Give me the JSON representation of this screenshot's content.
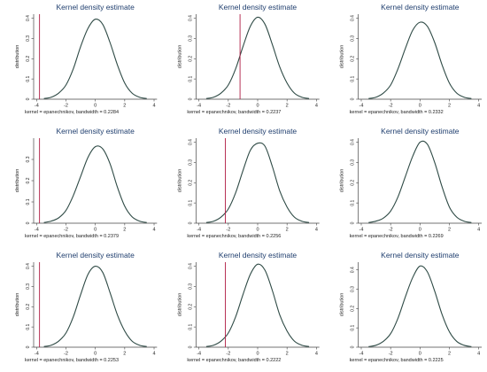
{
  "panels": [
    {
      "title": "Kernel density estimate",
      "ylabel": "distribution",
      "note": "kernel = epanechnikov, bandwidth = 0.2284",
      "x": [
        -3.5,
        -3,
        -2.5,
        -2,
        -1.5,
        -1,
        -0.5,
        0,
        0.5,
        1,
        1.5,
        2,
        2.5,
        3,
        3.5
      ],
      "y": [
        0.003,
        0.01,
        0.03,
        0.07,
        0.15,
        0.26,
        0.35,
        0.395,
        0.37,
        0.28,
        0.17,
        0.08,
        0.03,
        0.01,
        0.003
      ],
      "vline": -3.8,
      "xticks": [
        -4,
        -2,
        0,
        2,
        4
      ],
      "yticks": [
        0,
        0.1,
        0.2,
        0.3,
        0.4
      ],
      "xlim": [
        -4.2,
        4.2
      ],
      "ylim": [
        0,
        0.42
      ]
    },
    {
      "title": "Kernel density estimate",
      "ylabel": "distribution",
      "note": "kernel = epanechnikov, bandwidth = 0.2237",
      "x": [
        -3.5,
        -3,
        -2.5,
        -2,
        -1.5,
        -1,
        -0.5,
        0,
        0.5,
        1,
        1.5,
        2,
        2.5,
        3,
        3.5
      ],
      "y": [
        0.003,
        0.01,
        0.03,
        0.07,
        0.15,
        0.26,
        0.36,
        0.405,
        0.37,
        0.27,
        0.16,
        0.08,
        0.03,
        0.01,
        0.003
      ],
      "vline": -1.2,
      "xticks": [
        -4,
        -2,
        0,
        2,
        4
      ],
      "yticks": [
        0,
        0.1,
        0.2,
        0.3,
        0.4
      ],
      "xlim": [
        -4.2,
        4.2
      ],
      "ylim": [
        0,
        0.42
      ]
    },
    {
      "title": "Kernel density estimate",
      "ylabel": "distribution",
      "note": "kernel = epanechnikov, bandwidth = 0.2332",
      "x": [
        -3.5,
        -3,
        -2.5,
        -2,
        -1.5,
        -1,
        -0.5,
        0,
        0.5,
        1,
        1.5,
        2,
        2.5,
        3,
        3.5
      ],
      "y": [
        0.003,
        0.01,
        0.03,
        0.07,
        0.15,
        0.25,
        0.34,
        0.38,
        0.36,
        0.28,
        0.17,
        0.08,
        0.03,
        0.01,
        0.003
      ],
      "vline": null,
      "xticks": [
        -4,
        -2,
        0,
        2,
        4
      ],
      "yticks": [
        0,
        0.1,
        0.2,
        0.3,
        0.4
      ],
      "xlim": [
        -4.2,
        4.2
      ],
      "ylim": [
        0,
        0.42
      ]
    },
    {
      "title": "Kernel density estimate",
      "ylabel": "distribution",
      "note": "kernel = epanechnikov, bandwidth = 0.2379",
      "x": [
        -3.5,
        -3,
        -2.5,
        -2,
        -1.5,
        -1,
        -0.5,
        0,
        0.5,
        1,
        1.5,
        2,
        2.5,
        3,
        3.5
      ],
      "y": [
        0.003,
        0.01,
        0.025,
        0.06,
        0.13,
        0.22,
        0.31,
        0.36,
        0.35,
        0.28,
        0.17,
        0.08,
        0.03,
        0.01,
        0.003
      ],
      "vline": -3.8,
      "xticks": [
        -4,
        -2,
        0,
        2,
        4
      ],
      "yticks": [
        0,
        0.1,
        0.2,
        0.3
      ],
      "xlim": [
        -4.2,
        4.2
      ],
      "ylim": [
        0,
        0.4
      ]
    },
    {
      "title": "Kernel density estimate",
      "ylabel": "distribution",
      "note": "kernel = epanechnikov, bandwidth = 0.2256",
      "x": [
        -3.5,
        -3,
        -2.5,
        -2,
        -1.5,
        -1,
        -0.5,
        0,
        0.5,
        1,
        1.5,
        2,
        2.5,
        3,
        3.5
      ],
      "y": [
        0.003,
        0.01,
        0.03,
        0.07,
        0.15,
        0.26,
        0.36,
        0.395,
        0.38,
        0.28,
        0.16,
        0.08,
        0.03,
        0.01,
        0.003
      ],
      "vline": -2.2,
      "xticks": [
        -4,
        -2,
        0,
        2,
        4
      ],
      "yticks": [
        0,
        0.1,
        0.2,
        0.3,
        0.4
      ],
      "xlim": [
        -4.2,
        4.2
      ],
      "ylim": [
        0,
        0.42
      ]
    },
    {
      "title": "Kernel density estimate",
      "ylabel": "distribution",
      "note": "kernel = epanechnikov, bandwidth = 0.2269",
      "x": [
        -3.5,
        -3,
        -2.5,
        -2,
        -1.5,
        -1,
        -0.5,
        0,
        0.5,
        1,
        1.5,
        2,
        2.5,
        3,
        3.5
      ],
      "y": [
        0.003,
        0.01,
        0.025,
        0.06,
        0.13,
        0.23,
        0.33,
        0.4,
        0.39,
        0.3,
        0.18,
        0.08,
        0.03,
        0.01,
        0.003
      ],
      "vline": null,
      "xticks": [
        -4,
        -2,
        0,
        2,
        4
      ],
      "yticks": [
        0,
        0.1,
        0.2,
        0.3,
        0.4
      ],
      "xlim": [
        -4.2,
        4.2
      ],
      "ylim": [
        0,
        0.42
      ]
    },
    {
      "title": "Kernel density estimate",
      "ylabel": "distribution",
      "note": "kernel = epanechnikov, bandwidth = 0.2253",
      "x": [
        -3.5,
        -3,
        -2.5,
        -2,
        -1.5,
        -1,
        -0.5,
        0,
        0.5,
        1,
        1.5,
        2,
        2.5,
        3,
        3.5
      ],
      "y": [
        0.003,
        0.01,
        0.03,
        0.07,
        0.15,
        0.26,
        0.36,
        0.4,
        0.37,
        0.27,
        0.16,
        0.08,
        0.03,
        0.01,
        0.003
      ],
      "vline": -3.8,
      "xticks": [
        -4,
        -2,
        0,
        2,
        4
      ],
      "yticks": [
        0,
        0.1,
        0.2,
        0.3,
        0.4
      ],
      "xlim": [
        -4.2,
        4.2
      ],
      "ylim": [
        0,
        0.42
      ]
    },
    {
      "title": "Kernel density estimate",
      "ylabel": "distribution",
      "note": "kernel = epanechnikov, bandwidth = 0.2222",
      "x": [
        -3.5,
        -3,
        -2.5,
        -2,
        -1.5,
        -1,
        -0.5,
        0,
        0.5,
        1,
        1.5,
        2,
        2.5,
        3,
        3.5
      ],
      "y": [
        0.003,
        0.01,
        0.03,
        0.07,
        0.15,
        0.26,
        0.36,
        0.41,
        0.38,
        0.28,
        0.16,
        0.08,
        0.03,
        0.01,
        0.003
      ],
      "vline": -2.2,
      "xticks": [
        -4,
        -2,
        0,
        2,
        4
      ],
      "yticks": [
        0,
        0.1,
        0.2,
        0.3,
        0.4
      ],
      "xlim": [
        -4.2,
        4.2
      ],
      "ylim": [
        0,
        0.42
      ]
    },
    {
      "title": "Kernel density estimate",
      "ylabel": "distribution",
      "note": "kernel = epanechnikov, bandwidth = 0.2225",
      "x": [
        -3.5,
        -3,
        -2.5,
        -2,
        -1.5,
        -1,
        -0.5,
        0,
        0.5,
        1,
        1.5,
        2,
        2.5,
        3,
        3.5
      ],
      "y": [
        0.003,
        0.01,
        0.03,
        0.07,
        0.15,
        0.26,
        0.36,
        0.42,
        0.39,
        0.29,
        0.17,
        0.08,
        0.03,
        0.01,
        0.003
      ],
      "vline": null,
      "xticks": [
        -4,
        -2,
        0,
        2,
        4
      ],
      "yticks": [
        0,
        0.1,
        0.2,
        0.3,
        0.4
      ],
      "xlim": [
        -4.2,
        4.2
      ],
      "ylim": [
        0,
        0.44
      ]
    }
  ],
  "colors": {
    "curve": "#2e4a45",
    "vline": "#b01c44",
    "axis": "#444444",
    "title": "#1f3e6e",
    "text": "#222222"
  },
  "chart_data": [
    {
      "type": "line",
      "title": "Kernel density estimate",
      "ylabel": "distribution",
      "note": "kernel = epanechnikov, bandwidth = 0.2284",
      "reference_line_x": -3.8,
      "xlim": [
        -4.2,
        4.2
      ],
      "ylim": [
        0,
        0.42
      ]
    },
    {
      "type": "line",
      "title": "Kernel density estimate",
      "ylabel": "distribution",
      "note": "kernel = epanechnikov, bandwidth = 0.2237",
      "reference_line_x": -1.2,
      "xlim": [
        -4.2,
        4.2
      ],
      "ylim": [
        0,
        0.42
      ]
    },
    {
      "type": "line",
      "title": "Kernel density estimate",
      "ylabel": "distribution",
      "note": "kernel = epanechnikov, bandwidth = 0.2332",
      "reference_line_x": null,
      "xlim": [
        -4.2,
        4.2
      ],
      "ylim": [
        0,
        0.42
      ]
    },
    {
      "type": "line",
      "title": "Kernel density estimate",
      "ylabel": "distribution",
      "note": "kernel = epanechnikov, bandwidth = 0.2379",
      "reference_line_x": -3.8,
      "xlim": [
        -4.2,
        4.2
      ],
      "ylim": [
        0,
        0.4
      ]
    },
    {
      "type": "line",
      "title": "Kernel density estimate",
      "ylabel": "distribution",
      "note": "kernel = epanechnikov, bandwidth = 0.2256",
      "reference_line_x": -2.2,
      "xlim": [
        -4.2,
        4.2
      ],
      "ylim": [
        0,
        0.42
      ]
    },
    {
      "type": "line",
      "title": "Kernel density estimate",
      "ylabel": "distribution",
      "note": "kernel = epanechnikov, bandwidth = 0.2269",
      "reference_line_x": null,
      "xlim": [
        -4.2,
        4.2
      ],
      "ylim": [
        0,
        0.42
      ]
    },
    {
      "type": "line",
      "title": "Kernel density estimate",
      "ylabel": "distribution",
      "note": "kernel = epanechnikov, bandwidth = 0.2253",
      "reference_line_x": -3.8,
      "xlim": [
        -4.2,
        4.2
      ],
      "ylim": [
        0,
        0.42
      ]
    },
    {
      "type": "line",
      "title": "Kernel density estimate",
      "ylabel": "distribution",
      "note": "kernel = epanechnikov, bandwidth = 0.2222",
      "reference_line_x": -2.2,
      "xlim": [
        -4.2,
        4.2
      ],
      "ylim": [
        0,
        0.42
      ]
    },
    {
      "type": "line",
      "title": "Kernel density estimate",
      "ylabel": "distribution",
      "note": "kernel = epanechnikov, bandwidth = 0.2225",
      "reference_line_x": null,
      "xlim": [
        -4.2,
        4.2
      ],
      "ylim": [
        0,
        0.44
      ]
    }
  ]
}
